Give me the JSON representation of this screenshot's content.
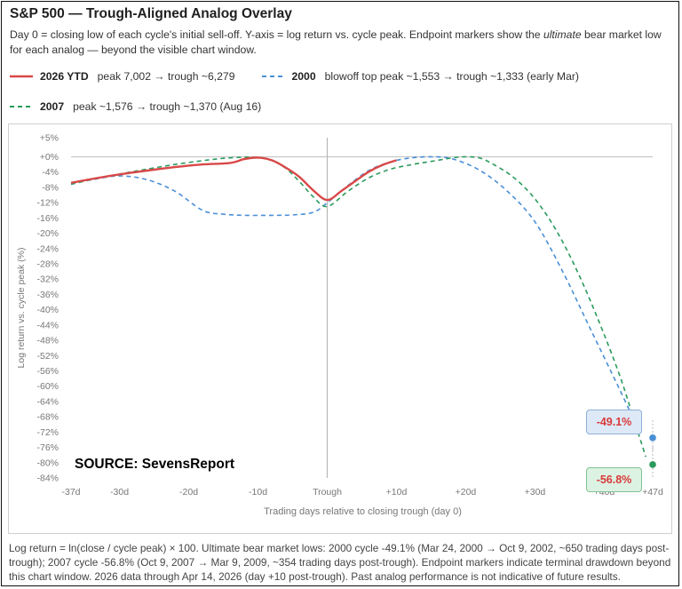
{
  "header": {
    "title": "S&P 500 — Trough-Aligned Analog Overlay",
    "subtitle_pre": "Day 0 = closing low of each cycle's initial sell-off. Y-axis = log return vs. cycle peak. Endpoint markers show the ",
    "subtitle_em": "ultimate",
    "subtitle_post": " bear market low for each analog — beyond the visible chart window."
  },
  "legend": [
    {
      "year": "2026 YTD",
      "desc": "peak 7,002 → trough ~6,279",
      "color": "#d94848",
      "style": "solid"
    },
    {
      "year": "2000",
      "desc": "blowoff top peak ~1,553 → trough ~1,333 (early Mar)",
      "color": "#4a8fd6",
      "style": "dashed"
    },
    {
      "year": "2007",
      "desc": "peak ~1,576 → trough ~1,370 (Aug 16)",
      "color": "#2a9a5c",
      "style": "dashed"
    }
  ],
  "source": "SOURCE: SevensReport",
  "badges": {
    "b2000": "-49.1%",
    "b2007": "-56.8%"
  },
  "footnote": "Log return = ln(close / cycle peak) × 100. Ultimate bear market lows: 2000 cycle -49.1% (Mar 24, 2000 → Oct 9, 2002, ~650 trading days post-trough); 2007 cycle -56.8% (Oct 9, 2007 → Mar 9, 2009, ~354 trading days post-trough). Endpoint markers indicate terminal drawdown beyond this chart window. 2026 data through Apr 14, 2026 (day +10 post-trough). Past analog performance is not indicative of future results.",
  "chart_data": {
    "type": "line",
    "xlabel": "Trading days relative to closing trough (day 0)",
    "ylabel": "Log return vs. cycle peak (%)",
    "xlim": [
      -37,
      47
    ],
    "ylim": [
      -84,
      5
    ],
    "x_ticks": [
      -37,
      -30,
      -20,
      -10,
      0,
      10,
      20,
      30,
      40,
      47
    ],
    "x_tick_labels": [
      "-37d",
      "-30d",
      "-20d",
      "-10d",
      "Trough",
      "+10d",
      "+20d",
      "+30d",
      "+40d",
      "+47d"
    ],
    "y_ticks": [
      5,
      0,
      -4,
      -8,
      -12,
      -16,
      -20,
      -24,
      -28,
      -32,
      -36,
      -40,
      -44,
      -48,
      -52,
      -56,
      -60,
      -64,
      -68,
      -72,
      -76,
      -80,
      -84
    ],
    "y_tick_labels": [
      "+5%",
      "+0%",
      "-4%",
      "-8%",
      "-12%",
      "-16%",
      "-20%",
      "-24%",
      "-28%",
      "-32%",
      "-36%",
      "-40%",
      "-44%",
      "-48%",
      "-52%",
      "-56%",
      "-60%",
      "-64%",
      "-68%",
      "-72%",
      "-76%",
      "-80%",
      "-84%"
    ],
    "zero_line": true,
    "trough_line": true,
    "series": [
      {
        "name": "2000",
        "color": "#4a8fd6",
        "dash": true,
        "x": [
          -37,
          -34,
          -30,
          -26,
          -22,
          -18,
          -15,
          -12,
          -8,
          -5,
          -2,
          0,
          3,
          6,
          9,
          12,
          15,
          18,
          22,
          26,
          30,
          34,
          38,
          42,
          45
        ],
        "y": [
          -7,
          -6,
          -5,
          -6,
          -9,
          -14,
          -15,
          -15.3,
          -15.3,
          -15.2,
          -14.5,
          -12,
          -7.5,
          -3.6,
          -1.4,
          -0.3,
          0,
          -0.5,
          -3.5,
          -9,
          -17,
          -30,
          -45,
          -60,
          -71.5
        ]
      },
      {
        "name": "2007",
        "color": "#2a9a5c",
        "dash": true,
        "x": [
          -37,
          -33,
          -30,
          -26,
          -22,
          -18,
          -15,
          -12,
          -10,
          -8,
          -6,
          -4,
          -2,
          0,
          3,
          6,
          9,
          12,
          15,
          18,
          20,
          22,
          24,
          27,
          30,
          33,
          36,
          39,
          42,
          44,
          46
        ],
        "y": [
          -7.2,
          -5.5,
          -4.5,
          -3.2,
          -2,
          -1,
          -0.4,
          -0.1,
          -0.2,
          -1,
          -3,
          -6.5,
          -10.5,
          -13,
          -9,
          -5.5,
          -3.3,
          -2.1,
          -1.2,
          -0.3,
          0,
          -0.3,
          -2,
          -5.5,
          -11,
          -19,
          -29.5,
          -42,
          -56,
          -67,
          -78.5
        ]
      },
      {
        "name": "2026 YTD",
        "color": "#d94848",
        "dash": false,
        "x": [
          -37,
          -34,
          -30,
          -26,
          -22,
          -18,
          -14,
          -12,
          -10,
          -8,
          -6,
          -4,
          -2,
          0,
          2,
          4,
          6,
          8,
          10
        ],
        "y": [
          -6.8,
          -5.8,
          -4.6,
          -3.6,
          -2.7,
          -2,
          -1.6,
          -0.6,
          -0.2,
          -0.9,
          -2.8,
          -5.3,
          -8.8,
          -11.3,
          -9,
          -6.4,
          -3.9,
          -2.1,
          -0.9
        ]
      }
    ],
    "endpoints": [
      {
        "name": "2000",
        "x": 47,
        "y": -73.5,
        "label": "-49.1%",
        "color": "#4a8fd6"
      },
      {
        "name": "2007",
        "x": 47,
        "y": -80.5,
        "label": "-56.8%",
        "color": "#2a9a5c"
      }
    ]
  }
}
